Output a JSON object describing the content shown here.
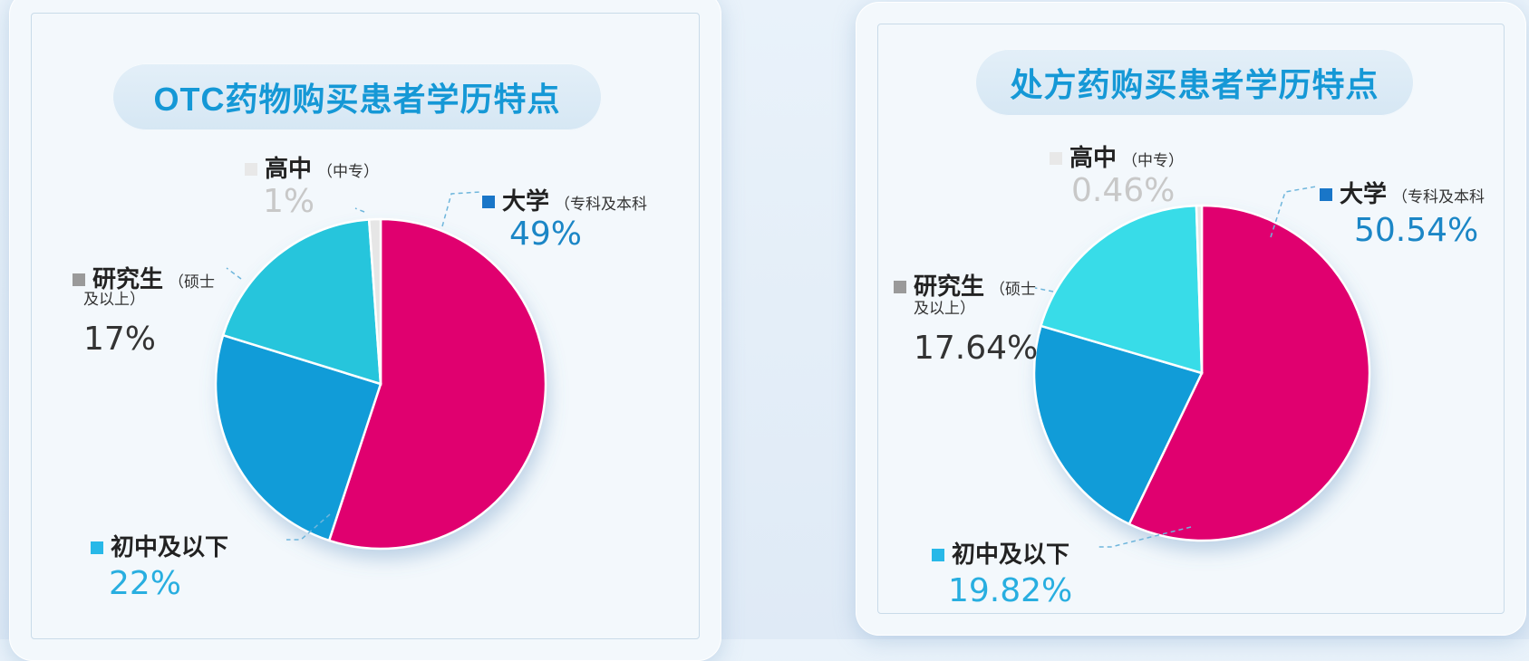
{
  "charts": [
    {
      "title": "OTC药物购买患者学历特点",
      "labels": {
        "high_school": {
          "name": "高中",
          "sub": "（中专）",
          "pct": "1%"
        },
        "university": {
          "name": "大学",
          "sub": "（专科及本科",
          "pct": "49%"
        },
        "graduate": {
          "name": "研究生",
          "sub": "（硕士",
          "sub2": "及以上）",
          "pct": "17%"
        },
        "junior": {
          "name": "初中及以下",
          "pct": "22%"
        }
      }
    },
    {
      "title": "处方药购买患者学历特点",
      "labels": {
        "high_school": {
          "name": "高中",
          "sub": "（中专）",
          "pct": "0.46%"
        },
        "university": {
          "name": "大学",
          "sub": "（专科及本科",
          "pct": "50.54%"
        },
        "graduate": {
          "name": "研究生",
          "sub": "（硕士",
          "sub2": "及以上）",
          "pct": "17.64%"
        },
        "junior": {
          "name": "初中及以下",
          "pct": "19.82%"
        }
      }
    }
  ],
  "chart_data": [
    {
      "type": "pie",
      "title": "OTC药物购买患者学历特点",
      "categories": [
        "大学（专科及本科）",
        "初中及以下",
        "研究生（硕士及以上）",
        "高中（中专）"
      ],
      "values": [
        49,
        22,
        17,
        1
      ],
      "colors": [
        "#e0006f",
        "#119cd8",
        "#26c5dc",
        "#e6e6e6"
      ]
    },
    {
      "type": "pie",
      "title": "处方药购买患者学历特点",
      "categories": [
        "大学（专科及本科）",
        "初中及以下",
        "研究生（硕士及以上）",
        "高中（中专）"
      ],
      "values": [
        50.54,
        19.82,
        17.64,
        0.46
      ],
      "colors": [
        "#e0006f",
        "#119cd8",
        "#38dce8",
        "#e6e6e6"
      ]
    }
  ],
  "colors": {
    "title_text": "#1598d6",
    "university_swatch": "#1976c8",
    "junior_swatch": "#28b8e8",
    "graduate_swatch": "#9a9a9a",
    "high_school_swatch": "#e8e8e8",
    "university_pct": "#1b86c6",
    "junior_pct": "#28aee0",
    "graduate_pct": "#333333",
    "high_school_pct": "#c8c8c8"
  }
}
